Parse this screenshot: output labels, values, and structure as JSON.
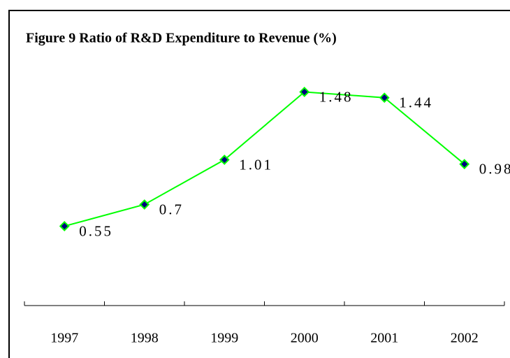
{
  "chart_data": {
    "type": "line",
    "title": "Figure 9 Ratio of R&D Expenditure to Revenue (%)",
    "categories": [
      "1997",
      "1998",
      "1999",
      "2000",
      "2001",
      "2002"
    ],
    "values": [
      0.55,
      0.7,
      1.01,
      1.48,
      1.44,
      0.98
    ],
    "color": "#00ff00",
    "marker_color": "#000080",
    "ylim": [
      0,
      1.6
    ]
  }
}
